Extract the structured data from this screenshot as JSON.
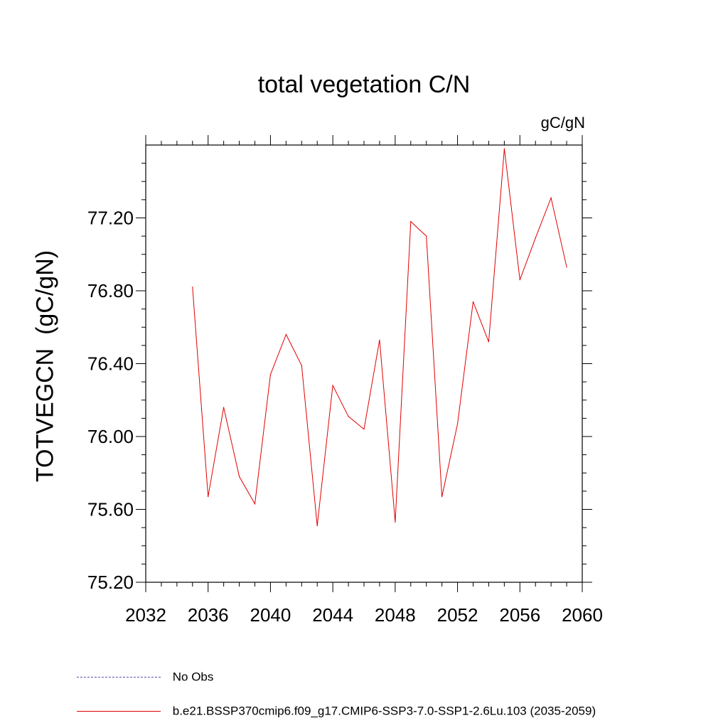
{
  "chart_data": {
    "type": "line",
    "title": "total vegetation C/N",
    "units": "gC/gN",
    "ylabel": "TOTVEGCN  (gC/gN)",
    "xlabel": "",
    "xlim": [
      2032,
      2060
    ],
    "ylim": [
      75.2,
      77.6
    ],
    "xticks": [
      "2032",
      "2036",
      "2040",
      "2044",
      "2048",
      "2052",
      "2056",
      "2060"
    ],
    "yticks": [
      "75.20",
      "75.60",
      "76.00",
      "76.40",
      "76.80",
      "77.20"
    ],
    "x": [
      2035,
      2036,
      2037,
      2038,
      2039,
      2040,
      2041,
      2042,
      2043,
      2044,
      2045,
      2046,
      2047,
      2048,
      2049,
      2050,
      2051,
      2052,
      2053,
      2054,
      2055,
      2056,
      2057,
      2058,
      2059
    ],
    "series": [
      {
        "name": "b.e21.BSSP370cmip6.f09_g17.CMIP6-SSP3-7.0-SSP1-2.6Lu.103 (2035-2059)",
        "color": "#e00000",
        "values": [
          76.82,
          75.67,
          76.16,
          75.78,
          75.63,
          76.34,
          76.56,
          76.39,
          75.51,
          76.28,
          76.11,
          76.04,
          76.53,
          75.53,
          77.18,
          77.1,
          75.67,
          76.07,
          76.74,
          76.52,
          77.58,
          76.86,
          77.09,
          77.31,
          76.93
        ]
      }
    ],
    "legend": [
      {
        "label": "No Obs",
        "color": "#5a4fb0",
        "style": "dashed"
      },
      {
        "label": "b.e21.BSSP370cmip6.f09_g17.CMIP6-SSP3-7.0-SSP1-2.6Lu.103 (2035-2059)",
        "color": "#e00000",
        "style": "solid"
      }
    ]
  }
}
